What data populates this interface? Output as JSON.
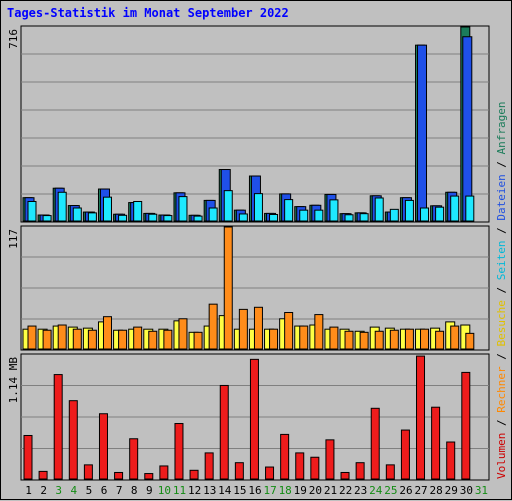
{
  "title": "Tages-Statistik im Monat September 2022",
  "colors": {
    "background": "#c0c0c0",
    "grid": "#808080",
    "title": "#0000ff",
    "anfragen": "#1b7c5a",
    "dateien": "#1f50e8",
    "seiten": "#1ee8ff",
    "besuche": "#ffff44",
    "rechner": "#ff8c1a",
    "volumen": "#ee1c1c",
    "day_normal": "#000000",
    "day_weekend": "#148c14"
  },
  "legend_right": [
    {
      "text": "Volumen",
      "color": "#cc0000"
    },
    {
      "text": " / ",
      "color": "#000000"
    },
    {
      "text": "Rechner",
      "color": "#ff8800"
    },
    {
      "text": " / ",
      "color": "#000000"
    },
    {
      "text": "Besuche",
      "color": "#e0c000"
    },
    {
      "text": " / ",
      "color": "#000000"
    },
    {
      "text": "Seiten",
      "color": "#00b8d8"
    },
    {
      "text": " / ",
      "color": "#000000"
    },
    {
      "text": "Dateien",
      "color": "#2050e0"
    },
    {
      "text": " / ",
      "color": "#000000"
    },
    {
      "text": "Anfragen",
      "color": "#1b7c5a"
    }
  ],
  "chart_data": [
    {
      "type": "bar",
      "name": "top-panel",
      "axis_label": "716",
      "ylim": [
        0,
        716
      ],
      "categories": [
        "1",
        "2",
        "3",
        "4",
        "5",
        "6",
        "7",
        "8",
        "9",
        "10",
        "11",
        "12",
        "13",
        "14",
        "15",
        "16",
        "17",
        "18",
        "19",
        "20",
        "21",
        "22",
        "23",
        "24",
        "25",
        "26",
        "27",
        "28",
        "29",
        "30",
        "31"
      ],
      "series": [
        {
          "name": "Anfragen",
          "color_key": "anfragen",
          "values": [
            86,
            22,
            121,
            57,
            33,
            118,
            25,
            68,
            28,
            22,
            104,
            21,
            76,
            190,
            40,
            166,
            28,
            100,
            53,
            58,
            98,
            27,
            30,
            93,
            33,
            86,
            649,
            56,
            106,
            716,
            0
          ]
        },
        {
          "name": "Dateien",
          "color_key": "dateien",
          "values": [
            86,
            22,
            121,
            57,
            33,
            118,
            25,
            68,
            28,
            22,
            104,
            21,
            76,
            190,
            40,
            166,
            28,
            100,
            53,
            58,
            98,
            27,
            30,
            93,
            33,
            86,
            649,
            56,
            106,
            680,
            0
          ]
        },
        {
          "name": "Seiten",
          "color_key": "seiten",
          "values": [
            72,
            20,
            106,
            48,
            30,
            88,
            21,
            72,
            25,
            20,
            90,
            18,
            48,
            112,
            26,
            101,
            24,
            79,
            40,
            40,
            78,
            23,
            27,
            85,
            43,
            76,
            48,
            51,
            92,
            92,
            0
          ]
        }
      ]
    },
    {
      "type": "bar",
      "name": "middle-panel",
      "axis_label": "117",
      "ylim": [
        0,
        117
      ],
      "categories": [
        "1",
        "2",
        "3",
        "4",
        "5",
        "6",
        "7",
        "8",
        "9",
        "10",
        "11",
        "12",
        "13",
        "14",
        "15",
        "16",
        "17",
        "18",
        "19",
        "20",
        "21",
        "22",
        "23",
        "24",
        "25",
        "26",
        "27",
        "28",
        "29",
        "30",
        "31"
      ],
      "series": [
        {
          "name": "Besuche",
          "color_key": "besuche",
          "values": [
            19,
            19,
            22,
            21,
            20,
            26,
            18,
            19,
            19,
            19,
            27,
            16,
            22,
            32,
            19,
            19,
            19,
            29,
            22,
            23,
            19,
            19,
            17,
            21,
            20,
            19,
            19,
            20,
            26,
            23,
            0
          ]
        },
        {
          "name": "Rechner",
          "color_key": "rechner",
          "values": [
            22,
            18,
            23,
            19,
            18,
            31,
            18,
            21,
            17,
            18,
            29,
            16,
            43,
            117,
            38,
            40,
            19,
            35,
            22,
            33,
            21,
            17,
            16,
            17,
            18,
            19,
            19,
            17,
            22,
            15,
            0
          ]
        }
      ]
    },
    {
      "type": "bar",
      "name": "bottom-panel",
      "axis_label": "1.14 MB",
      "ylim": [
        0,
        1.14
      ],
      "categories": [
        "1",
        "2",
        "3",
        "4",
        "5",
        "6",
        "7",
        "8",
        "9",
        "10",
        "11",
        "12",
        "13",
        "14",
        "15",
        "16",
        "17",
        "18",
        "19",
        "20",
        "21",
        "22",
        "23",
        "24",
        "25",
        "26",
        "27",
        "28",
        "29",
        "30",
        "31"
      ],
      "series": [
        {
          "name": "Volumen",
          "color_key": "volumen",
          "values": [
            0.4,
            0.07,
            0.96,
            0.72,
            0.13,
            0.6,
            0.06,
            0.37,
            0.05,
            0.12,
            0.51,
            0.08,
            0.24,
            0.86,
            0.15,
            1.1,
            0.11,
            0.41,
            0.24,
            0.2,
            0.36,
            0.06,
            0.15,
            0.65,
            0.13,
            0.45,
            1.13,
            0.66,
            0.34,
            0.98,
            0
          ]
        }
      ]
    }
  ],
  "weekend_days": [
    3,
    4,
    10,
    11,
    17,
    18,
    24,
    25,
    31
  ]
}
